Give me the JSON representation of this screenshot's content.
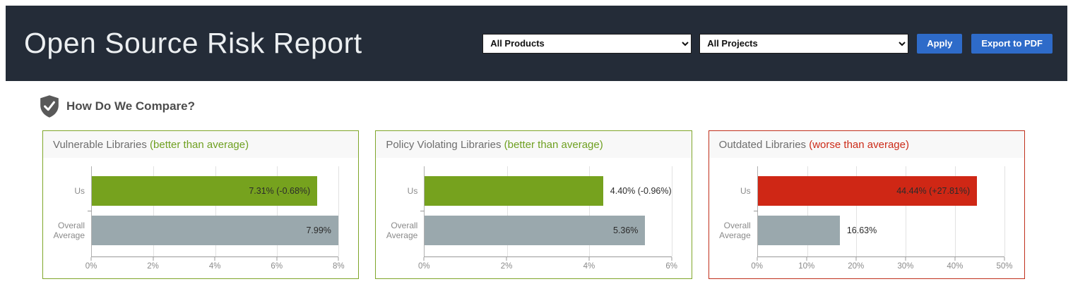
{
  "header": {
    "title": "Open Source Risk Report",
    "filters": {
      "products": {
        "value": "All Products"
      },
      "projects": {
        "value": "All Projects"
      }
    },
    "apply_label": "Apply",
    "export_label": "Export to PDF",
    "background_color": "#242c38",
    "button_color": "#2e6bc9"
  },
  "section": {
    "heading": "How Do We Compare?",
    "icon": "shield-check-icon",
    "icon_color": "#595959"
  },
  "colors": {
    "good_green": "#76a21e",
    "bad_red": "#cf2715",
    "average_gray": "#9aa8ad"
  },
  "charts": [
    {
      "title": "Vulnerable Libraries",
      "status": "(better than average)",
      "status_color": "#6fa021",
      "border_color": "#7fa62a",
      "chart_data": {
        "type": "bar",
        "orientation": "horizontal",
        "categories": [
          "Us",
          "Overall Average"
        ],
        "values": [
          7.31,
          7.99
        ],
        "value_labels": [
          "7.31% (-0.68%)",
          "7.99%"
        ],
        "bar_colors": [
          "#76a21e",
          "#9aa8ad"
        ],
        "xlim": [
          0,
          8
        ],
        "tick_values": [
          0,
          2,
          4,
          6,
          8
        ],
        "tick_labels": [
          "0%",
          "2%",
          "4%",
          "6%",
          "8%"
        ],
        "grid": true,
        "legend": false
      }
    },
    {
      "title": "Policy Violating Libraries",
      "status": "(better than average)",
      "status_color": "#6fa021",
      "border_color": "#7fa62a",
      "chart_data": {
        "type": "bar",
        "orientation": "horizontal",
        "categories": [
          "Us",
          "Overall Average"
        ],
        "values": [
          4.4,
          5.36
        ],
        "value_labels": [
          "4.40% (-0.96%)",
          "5.36%"
        ],
        "bar_colors": [
          "#76a21e",
          "#9aa8ad"
        ],
        "xlim": [
          0,
          6
        ],
        "tick_values": [
          0,
          2,
          4,
          6
        ],
        "tick_labels": [
          "0%",
          "2%",
          "4%",
          "6%"
        ],
        "grid": true,
        "legend": false
      }
    },
    {
      "title": "Outdated Libraries",
      "status": "(worse than average)",
      "status_color": "#cc2b18",
      "border_color": "#c0301c",
      "chart_data": {
        "type": "bar",
        "orientation": "horizontal",
        "categories": [
          "Us",
          "Overall Average"
        ],
        "values": [
          44.44,
          16.63
        ],
        "value_labels": [
          "44.44% (+27.81%)",
          "16.63%"
        ],
        "bar_colors": [
          "#cf2715",
          "#9aa8ad"
        ],
        "xlim": [
          0,
          50
        ],
        "tick_values": [
          0,
          10,
          20,
          30,
          40,
          50
        ],
        "tick_labels": [
          "0%",
          "10%",
          "20%",
          "30%",
          "40%",
          "50%"
        ],
        "grid": true,
        "legend": false
      }
    }
  ]
}
